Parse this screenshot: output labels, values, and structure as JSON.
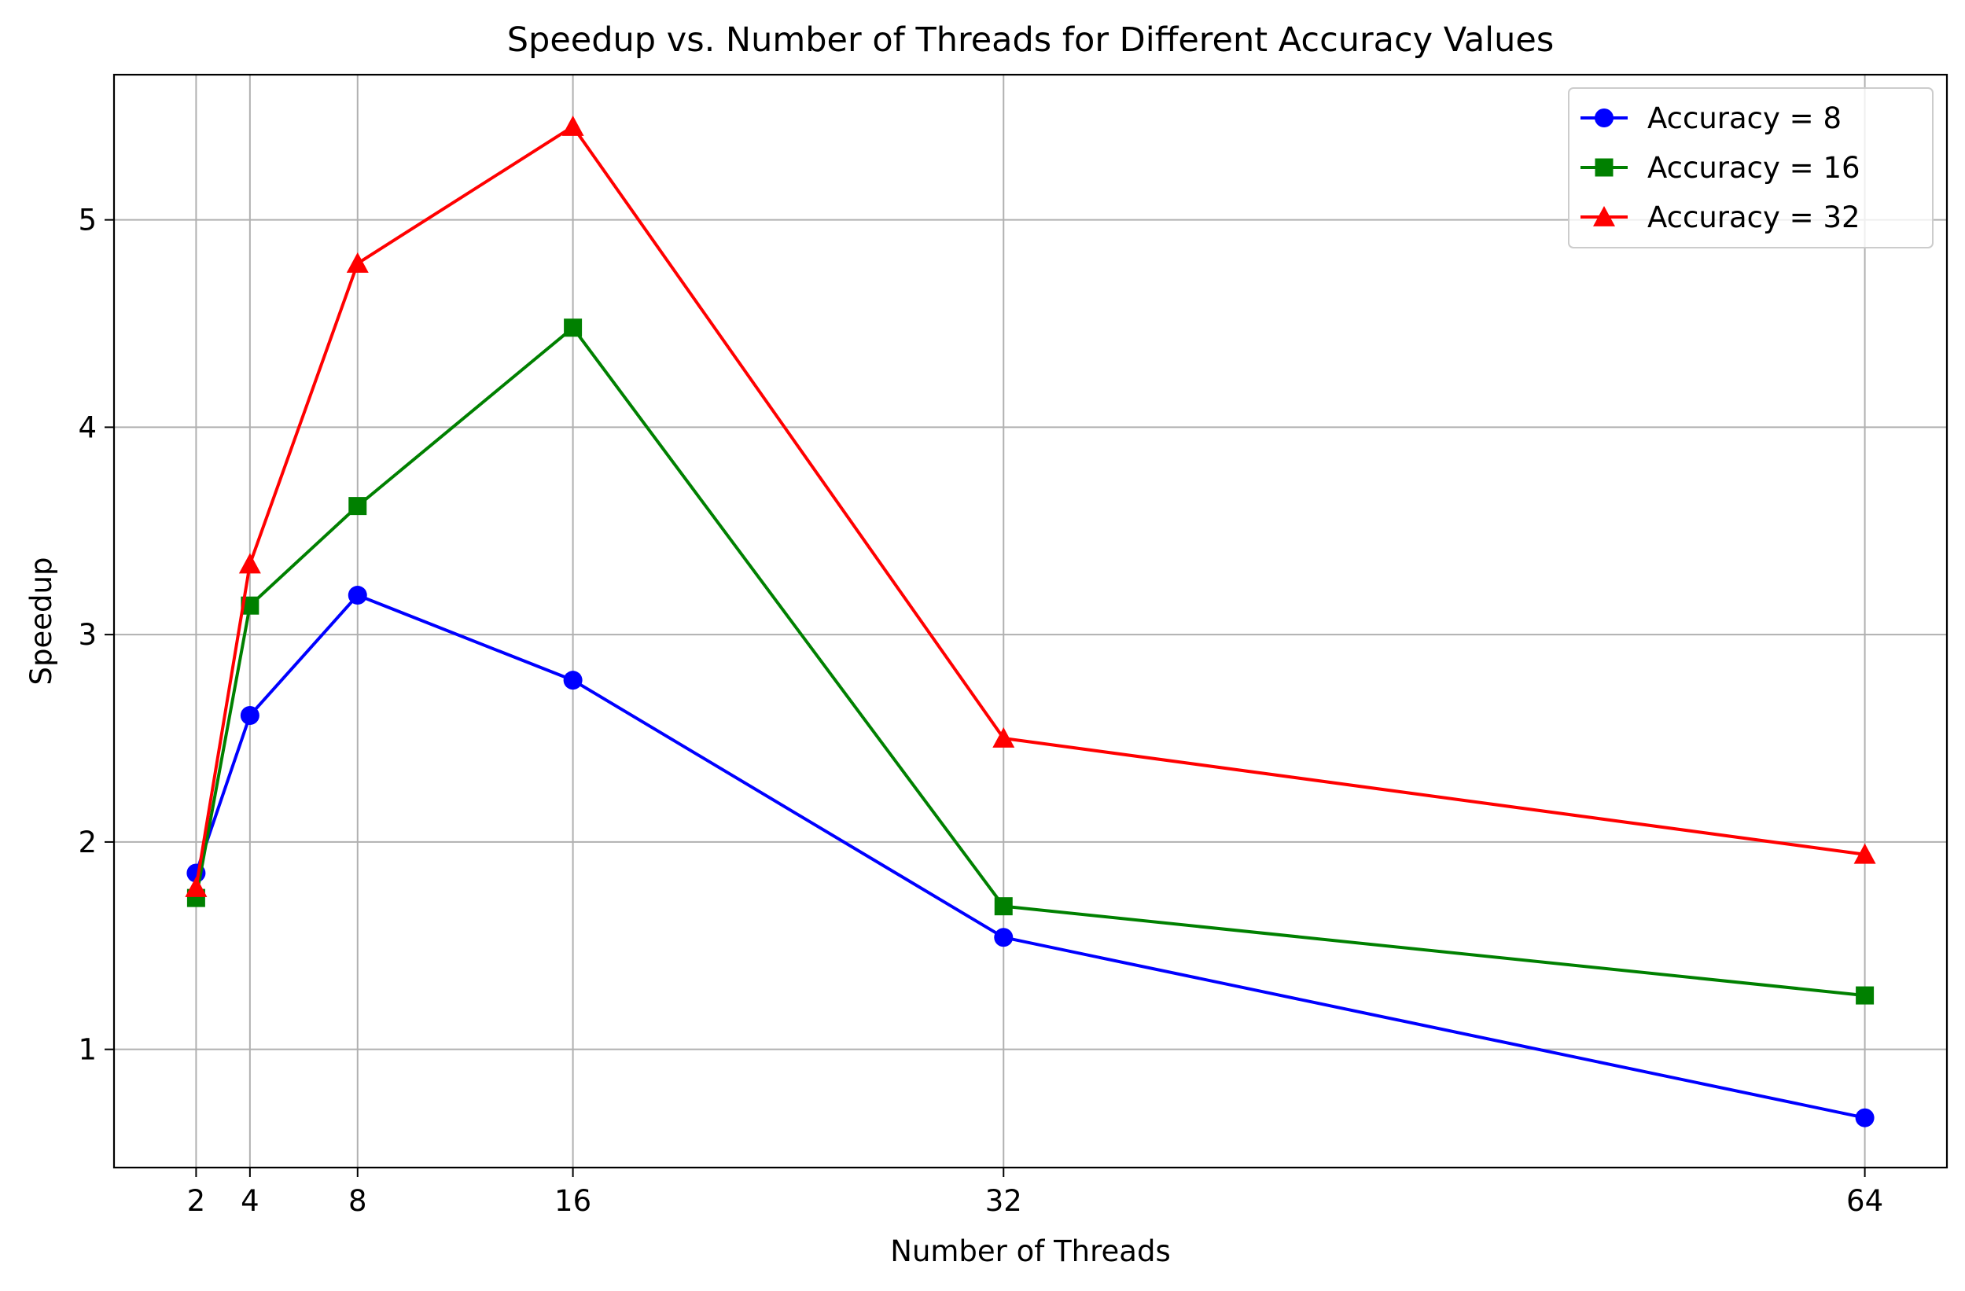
{
  "chart_data": {
    "type": "line",
    "title": "Speedup vs. Number of Threads for Different Accuracy Values",
    "xlabel": "Number of Threads",
    "ylabel": "Speedup",
    "x": [
      2,
      4,
      8,
      16,
      32,
      64
    ],
    "x_ticks": [
      2,
      4,
      8,
      16,
      32,
      64
    ],
    "y_ticks": [
      1,
      2,
      3,
      4,
      5
    ],
    "xlim": [
      -1.05,
      67.05
    ],
    "ylim": [
      0.43,
      5.7
    ],
    "grid": true,
    "legend_position": "top-right",
    "series": [
      {
        "name": "Accuracy = 8",
        "color": "#0000ff",
        "marker": "circle",
        "values": [
          1.85,
          2.61,
          3.19,
          2.78,
          1.54,
          0.67
        ]
      },
      {
        "name": "Accuracy = 16",
        "color": "#008000",
        "marker": "square",
        "values": [
          1.73,
          3.14,
          3.62,
          4.48,
          1.69,
          1.26
        ]
      },
      {
        "name": "Accuracy = 32",
        "color": "#ff0000",
        "marker": "triangle",
        "values": [
          1.78,
          3.34,
          4.79,
          5.45,
          2.5,
          1.94
        ]
      }
    ]
  }
}
